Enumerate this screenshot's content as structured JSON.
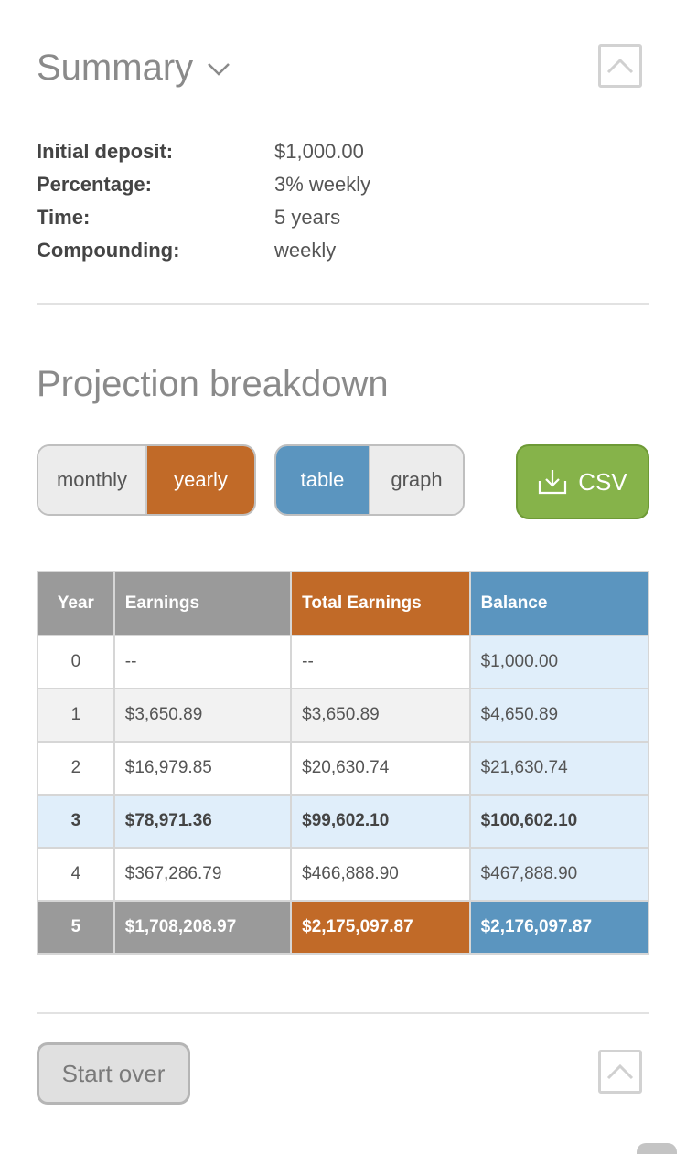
{
  "summary": {
    "title": "Summary",
    "rows": [
      {
        "label": "Initial deposit:",
        "value": "$1,000.00"
      },
      {
        "label": "Percentage:",
        "value": "3% weekly"
      },
      {
        "label": "Time:",
        "value": "5 years"
      },
      {
        "label": "Compounding:",
        "value": "weekly"
      }
    ]
  },
  "projection": {
    "title": "Projection breakdown",
    "period_toggle": {
      "monthly": "monthly",
      "yearly": "yearly",
      "selected": "yearly"
    },
    "view_toggle": {
      "table": "table",
      "graph": "graph",
      "selected": "table"
    },
    "csv_label": "CSV",
    "table": {
      "headers": {
        "year": "Year",
        "earnings": "Earnings",
        "total": "Total Earnings",
        "balance": "Balance"
      },
      "rows": [
        {
          "year": "0",
          "earnings": "--",
          "total": "--",
          "balance": "$1,000.00"
        },
        {
          "year": "1",
          "earnings": "$3,650.89",
          "total": "$3,650.89",
          "balance": "$4,650.89"
        },
        {
          "year": "2",
          "earnings": "$16,979.85",
          "total": "$20,630.74",
          "balance": "$21,630.74"
        },
        {
          "year": "3",
          "earnings": "$78,971.36",
          "total": "$99,602.10",
          "balance": "$100,602.10"
        },
        {
          "year": "4",
          "earnings": "$367,286.79",
          "total": "$466,888.90",
          "balance": "$467,888.90"
        },
        {
          "year": "5",
          "earnings": "$1,708,208.97",
          "total": "$2,175,097.87",
          "balance": "$2,176,097.87"
        }
      ]
    }
  },
  "footer": {
    "start_over_label": "Start over"
  },
  "colors": {
    "orange": "#c16a28",
    "blue": "#5b95bf",
    "green": "#86b34a",
    "grey": "#9a9a9a"
  }
}
